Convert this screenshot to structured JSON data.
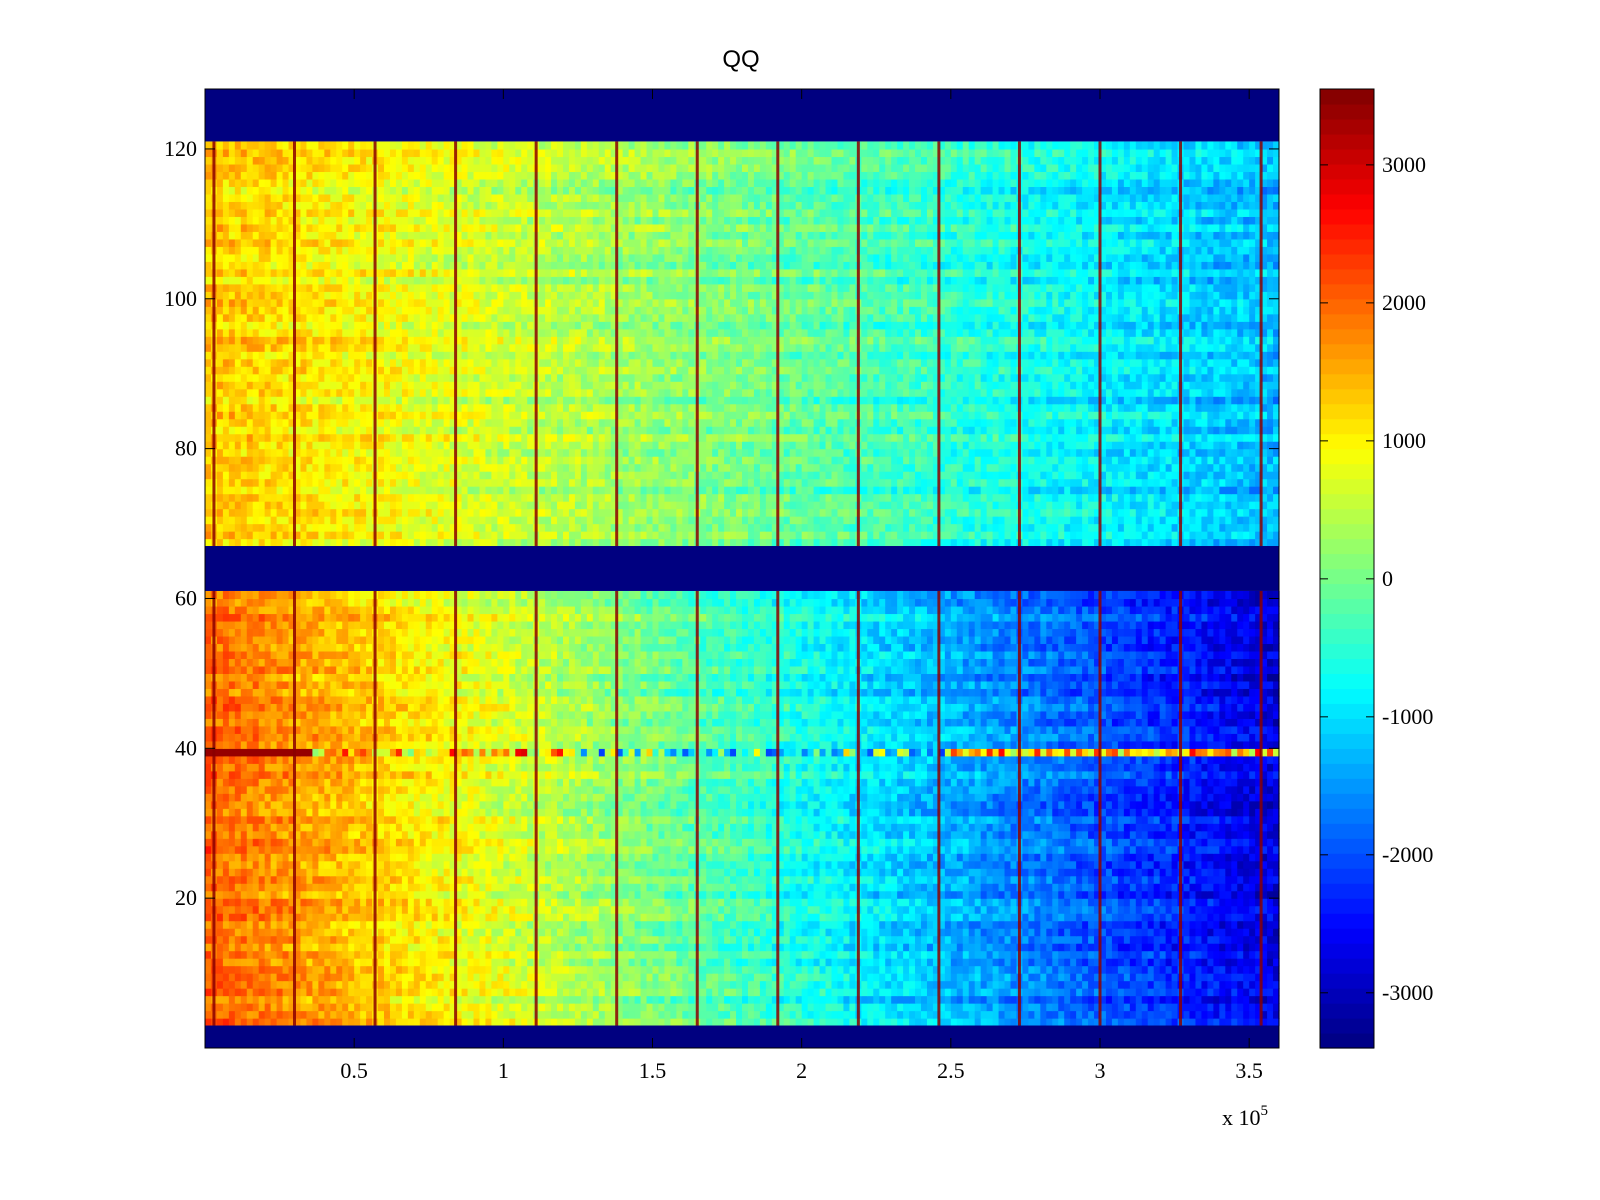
{
  "chart_data": {
    "type": "heatmap",
    "title": "QQ",
    "xlabel": "",
    "ylabel": "",
    "x_exponent_label": "x 10",
    "x_exponent_power": "5",
    "xlim": [
      0,
      3.6
    ],
    "ylim": [
      0,
      128
    ],
    "x_ticks": [
      0.5,
      1,
      1.5,
      2,
      2.5,
      3,
      3.5
    ],
    "x_tick_labels": [
      "0.5",
      "1",
      "1.5",
      "2",
      "2.5",
      "3",
      "3.5"
    ],
    "y_ticks": [
      20,
      40,
      60,
      80,
      100,
      120
    ],
    "y_tick_labels": [
      "20",
      "40",
      "60",
      "80",
      "100",
      "120"
    ],
    "colormap": "jet",
    "clim": [
      -3400,
      3550
    ],
    "colorbar_ticks": [
      3000,
      2000,
      1000,
      0,
      -1000,
      -2000,
      -3000
    ],
    "colorbar_tick_labels": [
      "3000",
      "2000",
      "1000",
      "0",
      "-1000",
      "-2000",
      "-3000"
    ],
    "masked_row_bands": [
      {
        "from": 0,
        "to": 3,
        "value": -3400
      },
      {
        "from": 61,
        "to": 67,
        "value": -3400
      },
      {
        "from": 121,
        "to": 128,
        "value": -3400
      }
    ],
    "vertical_line_x": [
      0.03,
      0.3,
      0.57,
      0.84,
      1.11,
      1.38,
      1.65,
      1.92,
      2.19,
      2.46,
      2.73,
      3.0,
      3.27,
      3.54
    ],
    "anomalous_row": 39,
    "upper_block_trend": {
      "rows": [
        67,
        121
      ],
      "x": [
        0,
        3.6
      ],
      "value": [
        1300,
        -1300
      ]
    },
    "lower_block_trend": {
      "rows": [
        3,
        61
      ],
      "x": [
        0,
        3.6
      ],
      "value": [
        2000,
        -2800
      ]
    },
    "colors": {
      "background": "#ffffff",
      "axes": "#000000",
      "masked": "#00008f"
    }
  }
}
